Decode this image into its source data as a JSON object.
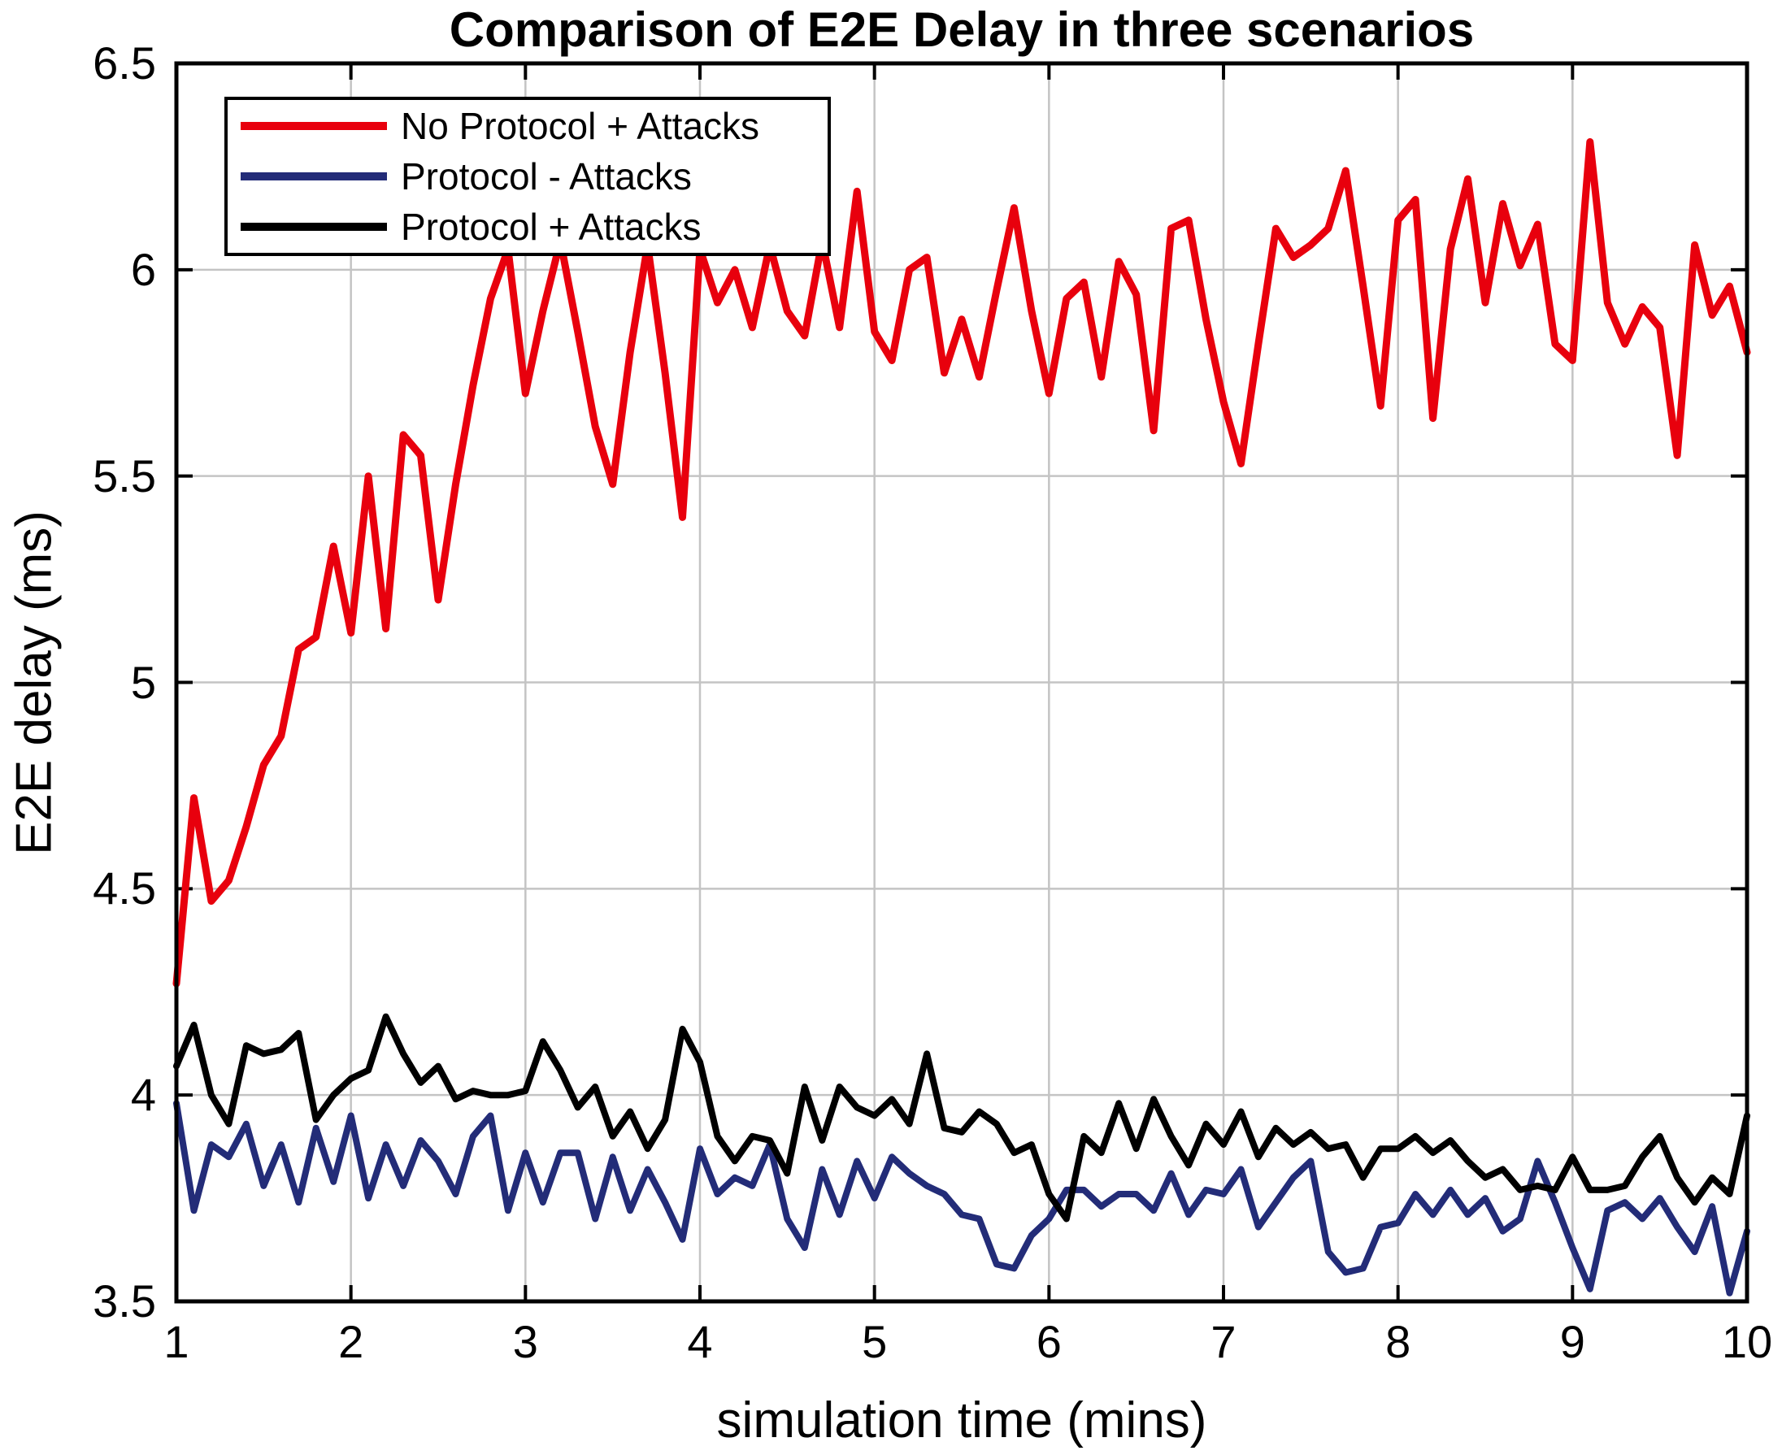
{
  "page": {
    "background": "#ffffff"
  },
  "chart_data": {
    "type": "line",
    "title": "Comparison of E2E Delay in three scenarios",
    "xlabel": "simulation time (mins)",
    "ylabel": "E2E delay (ms)",
    "xlim": [
      1,
      10
    ],
    "ylim": [
      3.5,
      6.5
    ],
    "grid": true,
    "legend_position": "top-left",
    "colors": {
      "grid": "#c4c4c4",
      "axis": "#000000",
      "background": "#ffffff"
    },
    "x_ticks": [
      {
        "v": 1,
        "label": "1"
      },
      {
        "v": 2,
        "label": "2"
      },
      {
        "v": 3,
        "label": "3"
      },
      {
        "v": 4,
        "label": "4"
      },
      {
        "v": 5,
        "label": "5"
      },
      {
        "v": 6,
        "label": "6"
      },
      {
        "v": 7,
        "label": "7"
      },
      {
        "v": 8,
        "label": "8"
      },
      {
        "v": 9,
        "label": "9"
      },
      {
        "v": 10,
        "label": "10"
      }
    ],
    "y_ticks": [
      {
        "v": 3.5,
        "label": "3.5"
      },
      {
        "v": 4,
        "label": "4"
      },
      {
        "v": 4.5,
        "label": "4.5"
      },
      {
        "v": 5,
        "label": "5"
      },
      {
        "v": 5.5,
        "label": "5.5"
      },
      {
        "v": 6,
        "label": "6"
      },
      {
        "v": 6.5,
        "label": "6.5"
      }
    ],
    "x_start": 1,
    "x_step": 0.1,
    "series": [
      {
        "name": "No Protocol + Attacks",
        "color": "#e8000d",
        "width": 9,
        "values": [
          4.27,
          4.72,
          4.47,
          4.52,
          4.65,
          4.8,
          4.87,
          5.08,
          5.11,
          5.33,
          5.12,
          5.5,
          5.13,
          5.6,
          5.55,
          5.2,
          5.48,
          5.72,
          5.93,
          6.05,
          5.7,
          5.9,
          6.07,
          5.85,
          5.62,
          5.48,
          5.8,
          6.06,
          5.75,
          5.4,
          6.05,
          5.92,
          6.0,
          5.86,
          6.06,
          5.9,
          5.84,
          6.07,
          5.86,
          6.19,
          5.85,
          5.78,
          6.0,
          6.03,
          5.75,
          5.88,
          5.74,
          5.95,
          6.15,
          5.9,
          5.7,
          5.93,
          5.97,
          5.74,
          6.02,
          5.94,
          5.61,
          6.1,
          6.12,
          5.88,
          5.68,
          5.53,
          5.82,
          6.1,
          6.03,
          6.06,
          6.1,
          6.24,
          5.96,
          5.67,
          6.12,
          6.17,
          5.64,
          6.05,
          6.22,
          5.92,
          6.16,
          6.01,
          6.11,
          5.82,
          5.78,
          6.31,
          5.92,
          5.82,
          5.91,
          5.86,
          5.55,
          6.06,
          5.89,
          5.96,
          5.8
        ]
      },
      {
        "name": "Protocol - Attacks",
        "color": "#232c78",
        "width": 8,
        "values": [
          3.98,
          3.72,
          3.88,
          3.85,
          3.93,
          3.78,
          3.88,
          3.74,
          3.92,
          3.79,
          3.95,
          3.75,
          3.88,
          3.78,
          3.89,
          3.84,
          3.76,
          3.9,
          3.95,
          3.72,
          3.86,
          3.74,
          3.86,
          3.86,
          3.7,
          3.85,
          3.72,
          3.82,
          3.74,
          3.65,
          3.87,
          3.76,
          3.8,
          3.78,
          3.88,
          3.7,
          3.63,
          3.82,
          3.71,
          3.84,
          3.75,
          3.85,
          3.81,
          3.78,
          3.76,
          3.71,
          3.7,
          3.59,
          3.58,
          3.66,
          3.7,
          3.77,
          3.77,
          3.73,
          3.76,
          3.76,
          3.72,
          3.81,
          3.71,
          3.77,
          3.76,
          3.82,
          3.68,
          3.74,
          3.8,
          3.84,
          3.62,
          3.57,
          3.58,
          3.68,
          3.69,
          3.76,
          3.71,
          3.77,
          3.71,
          3.75,
          3.67,
          3.7,
          3.84,
          3.74,
          3.63,
          3.53,
          3.72,
          3.74,
          3.7,
          3.75,
          3.68,
          3.62,
          3.73,
          3.52,
          3.67
        ]
      },
      {
        "name": "Protocol + Attacks",
        "color": "#000000",
        "width": 8,
        "values": [
          4.07,
          4.17,
          4.0,
          3.93,
          4.12,
          4.1,
          4.11,
          4.15,
          3.94,
          4.0,
          4.04,
          4.06,
          4.19,
          4.1,
          4.03,
          4.07,
          3.99,
          4.01,
          4.0,
          4.0,
          4.01,
          4.13,
          4.06,
          3.97,
          4.02,
          3.9,
          3.96,
          3.87,
          3.94,
          4.16,
          4.08,
          3.9,
          3.84,
          3.9,
          3.89,
          3.81,
          4.02,
          3.89,
          4.02,
          3.97,
          3.95,
          3.99,
          3.93,
          4.1,
          3.92,
          3.91,
          3.96,
          3.93,
          3.86,
          3.88,
          3.76,
          3.7,
          3.9,
          3.86,
          3.98,
          3.87,
          3.99,
          3.9,
          3.83,
          3.93,
          3.88,
          3.96,
          3.85,
          3.92,
          3.88,
          3.91,
          3.87,
          3.88,
          3.8,
          3.87,
          3.87,
          3.9,
          3.86,
          3.89,
          3.84,
          3.8,
          3.82,
          3.77,
          3.78,
          3.77,
          3.85,
          3.77,
          3.77,
          3.78,
          3.85,
          3.9,
          3.8,
          3.74,
          3.8,
          3.76,
          3.95
        ]
      }
    ]
  }
}
